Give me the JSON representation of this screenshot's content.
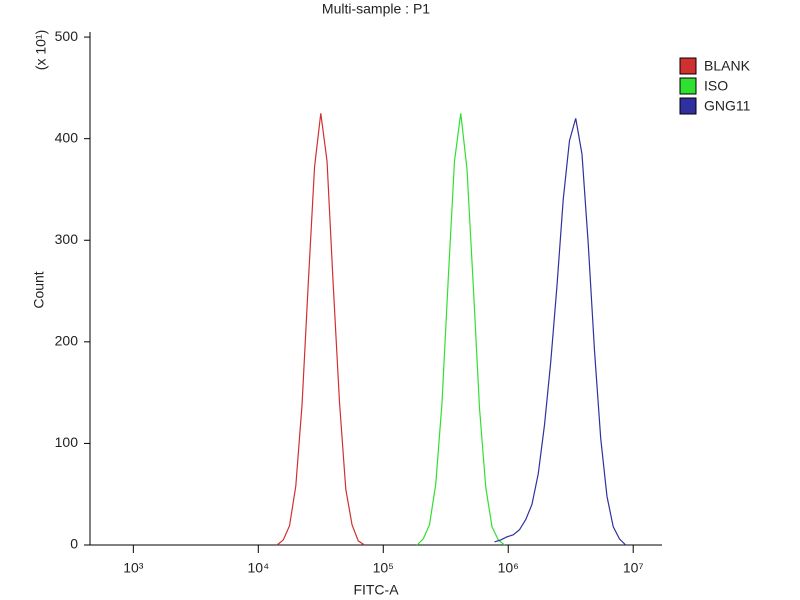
{
  "chart_data": {
    "type": "line",
    "title": "Multi-sample : P1",
    "x_label": "FITC-A",
    "y_label": "Count",
    "y_multiplier": "(x 10¹)",
    "xscale": "log",
    "xlim": [
      450,
      17000000
    ],
    "ylim": [
      0,
      505
    ],
    "xticks": [
      {
        "value": 1000,
        "label": "10³"
      },
      {
        "value": 10000,
        "label": "10⁴"
      },
      {
        "value": 100000,
        "label": "10⁵"
      },
      {
        "value": 1000000,
        "label": "10⁶"
      },
      {
        "value": 10000000,
        "label": "10⁷"
      }
    ],
    "yticks": [
      0,
      100,
      200,
      300,
      400,
      500
    ],
    "grid": false,
    "legend": "outside right",
    "series": [
      {
        "name": "BLANK",
        "color": "#d03030",
        "x": [
          14125,
          15849,
          17783,
          19953,
          22387,
          25119,
          28184,
          31623,
          35481,
          39811,
          44668,
          50119,
          56234,
          63096,
          70795
        ],
        "values": [
          0,
          5,
          19,
          58,
          138,
          258,
          372,
          425,
          378,
          255,
          140,
          55,
          20,
          4,
          0
        ]
      },
      {
        "name": "ISO",
        "color": "#30e030",
        "x": [
          186209,
          208930,
          234423,
          263027,
          295121,
          331131,
          371535,
          416869,
          467735,
          524807,
          588844,
          660693,
          741310,
          831764,
          933254
        ],
        "values": [
          0,
          6,
          20,
          60,
          140,
          262,
          378,
          425,
          370,
          256,
          135,
          57,
          18,
          5,
          0
        ]
      },
      {
        "name": "GNG11",
        "color": "#3030a0",
        "x": [
          776247,
          870964,
          977237,
          1096478,
          1230269,
          1380384,
          1548817,
          1737801,
          1949845,
          2187762,
          2454709,
          2754229,
          3090295,
          3467369,
          3890451,
          4365158,
          4897788,
          5495409,
          6165950,
          6918310,
          7762471,
          8709636
        ],
        "values": [
          3,
          5,
          8,
          10,
          15,
          25,
          40,
          70,
          118,
          180,
          255,
          340,
          398,
          420,
          385,
          297,
          192,
          105,
          48,
          18,
          6,
          0
        ]
      }
    ]
  }
}
